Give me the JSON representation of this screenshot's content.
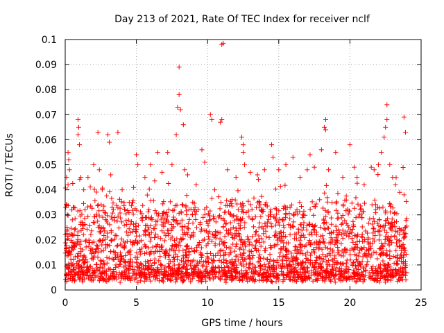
{
  "chart_data": {
    "type": "scatter",
    "title": "Day 213 of 2021, Rate Of TEC Index for receiver nclf",
    "xlabel": "GPS time / hours",
    "ylabel": "ROTI / TECUs",
    "xlim": [
      0,
      25
    ],
    "ylim": [
      0,
      0.1
    ],
    "xticks": [
      0,
      5,
      10,
      15,
      20,
      25
    ],
    "yticks": [
      0,
      0.01,
      0.02,
      0.03,
      0.04,
      0.05,
      0.06,
      0.07,
      0.08,
      0.09,
      0.1
    ],
    "grid": true,
    "marker": "plus",
    "color": "#ff0000",
    "series": [
      {
        "points": [
          [
            0.1,
            0.034
          ],
          [
            0.1,
            0.045
          ],
          [
            0.2,
            0.055
          ],
          [
            0.25,
            0.052
          ],
          [
            0.2,
            0.042
          ],
          [
            0.15,
            0.03
          ],
          [
            0.3,
            0.048
          ],
          [
            0.5,
            0.028
          ],
          [
            0.6,
            0.033
          ],
          [
            0.9,
            0.068
          ],
          [
            0.95,
            0.065
          ],
          [
            0.9,
            0.062
          ],
          [
            1.0,
            0.058
          ],
          [
            1.1,
            0.045
          ],
          [
            1.3,
            0.04
          ],
          [
            1.6,
            0.045
          ],
          [
            2.0,
            0.05
          ],
          [
            2.3,
            0.063
          ],
          [
            2.4,
            0.048
          ],
          [
            2.6,
            0.04
          ],
          [
            3.0,
            0.062
          ],
          [
            3.1,
            0.059
          ],
          [
            3.2,
            0.046
          ],
          [
            3.7,
            0.063
          ],
          [
            4.0,
            0.04
          ],
          [
            4.5,
            0.035
          ],
          [
            5.0,
            0.054
          ],
          [
            5.1,
            0.05
          ],
          [
            5.6,
            0.045
          ],
          [
            6.0,
            0.05
          ],
          [
            6.5,
            0.055
          ],
          [
            6.8,
            0.047
          ],
          [
            7.2,
            0.055
          ],
          [
            7.5,
            0.05
          ],
          [
            7.8,
            0.062
          ],
          [
            7.9,
            0.073
          ],
          [
            8.0,
            0.089
          ],
          [
            8.0,
            0.078
          ],
          [
            8.1,
            0.072
          ],
          [
            8.3,
            0.066
          ],
          [
            8.4,
            0.048
          ],
          [
            8.6,
            0.046
          ],
          [
            9.2,
            0.042
          ],
          [
            9.6,
            0.056
          ],
          [
            9.8,
            0.051
          ],
          [
            10.2,
            0.07
          ],
          [
            10.3,
            0.068
          ],
          [
            10.5,
            0.04
          ],
          [
            10.9,
            0.067
          ],
          [
            11.0,
            0.098
          ],
          [
            11.1,
            0.0985
          ],
          [
            11.0,
            0.068
          ],
          [
            11.4,
            0.048
          ],
          [
            12.0,
            0.045
          ],
          [
            12.4,
            0.061
          ],
          [
            12.5,
            0.058
          ],
          [
            12.5,
            0.055
          ],
          [
            12.6,
            0.05
          ],
          [
            13.0,
            0.047
          ],
          [
            13.5,
            0.046
          ],
          [
            14.0,
            0.048
          ],
          [
            14.5,
            0.058
          ],
          [
            14.6,
            0.053
          ],
          [
            15.0,
            0.048
          ],
          [
            15.5,
            0.05
          ],
          [
            16.0,
            0.053
          ],
          [
            16.5,
            0.045
          ],
          [
            17.0,
            0.048
          ],
          [
            17.2,
            0.054
          ],
          [
            17.5,
            0.049
          ],
          [
            18.0,
            0.056
          ],
          [
            18.2,
            0.065
          ],
          [
            18.3,
            0.068
          ],
          [
            18.3,
            0.064
          ],
          [
            18.5,
            0.048
          ],
          [
            19.0,
            0.055
          ],
          [
            19.5,
            0.045
          ],
          [
            20.0,
            0.058
          ],
          [
            20.3,
            0.049
          ],
          [
            20.5,
            0.045
          ],
          [
            21.0,
            0.042
          ],
          [
            21.5,
            0.049
          ],
          [
            21.7,
            0.048
          ],
          [
            22.0,
            0.05
          ],
          [
            22.2,
            0.055
          ],
          [
            22.4,
            0.061
          ],
          [
            22.5,
            0.065
          ],
          [
            22.6,
            0.068
          ],
          [
            22.6,
            0.074
          ],
          [
            22.8,
            0.05
          ],
          [
            23.0,
            0.045
          ],
          [
            23.2,
            0.042
          ],
          [
            23.5,
            0.039
          ],
          [
            23.8,
            0.069
          ],
          [
            23.9,
            0.063
          ],
          [
            23.8,
            0.038
          ],
          [
            23.9,
            0.025
          ]
        ]
      }
    ]
  }
}
